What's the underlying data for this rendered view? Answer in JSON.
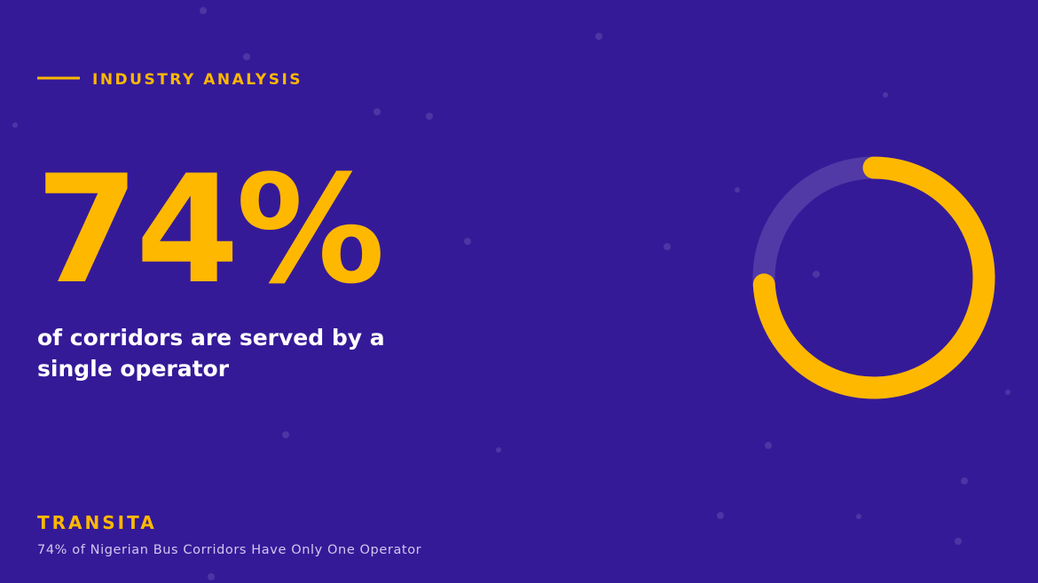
{
  "header": {
    "kicker": "INDUSTRY ANALYSIS"
  },
  "headline": {
    "stat": "74%",
    "lines": [
      "of corridors are served by a",
      "single operator"
    ]
  },
  "footer": {
    "brand": "TRANSITA",
    "caption": "74% of Nigerian Bus Corridors Have Only One Operator"
  },
  "chart_data": {
    "type": "donut",
    "values": [
      74,
      26
    ],
    "colors": [
      "#ffb800",
      "rgba(255,255,255,0.14)"
    ]
  }
}
